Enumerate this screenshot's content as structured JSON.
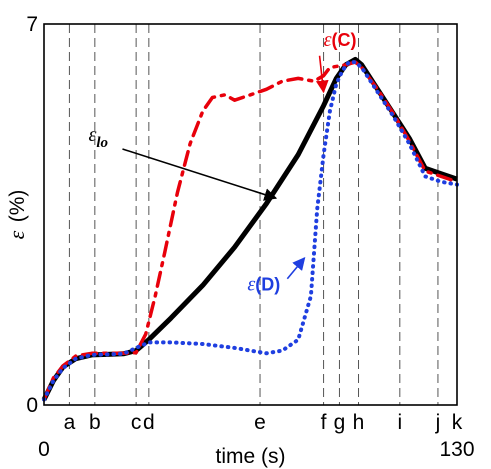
{
  "chart_data": {
    "type": "line",
    "title": "",
    "xlabel": "time (s)",
    "ylabel_symbol": "ε",
    "ylabel_unit": "(%)",
    "xlim": [
      0,
      130
    ],
    "ylim": [
      0,
      7
    ],
    "x_tick_labels": [
      {
        "label": "0",
        "x": 0
      },
      {
        "label": "130",
        "x": 130
      }
    ],
    "y_tick_labels": [
      {
        "label": "0",
        "y": 0
      },
      {
        "label": "7",
        "y": 7
      }
    ],
    "event_markers": [
      {
        "label": "a",
        "x": 8
      },
      {
        "label": "b",
        "x": 16
      },
      {
        "label": "c",
        "x": 29
      },
      {
        "label": "d",
        "x": 33
      },
      {
        "label": "e",
        "x": 68
      },
      {
        "label": "f",
        "x": 88
      },
      {
        "label": "g",
        "x": 93
      },
      {
        "label": "h",
        "x": 99
      },
      {
        "label": "i",
        "x": 112
      },
      {
        "label": "j",
        "x": 124
      },
      {
        "label": "k",
        "x": 130
      }
    ],
    "series": [
      {
        "name": "ε_lo",
        "color": "#000000",
        "style": "solid",
        "x": [
          0,
          3,
          6,
          10,
          15,
          20,
          25,
          29,
          33,
          40,
          50,
          60,
          70,
          80,
          88,
          92,
          95,
          98,
          100,
          105,
          110,
          115,
          120,
          125,
          130
        ],
        "y": [
          0.1,
          0.45,
          0.7,
          0.85,
          0.92,
          0.93,
          0.94,
          1.0,
          1.2,
          1.6,
          2.2,
          2.9,
          3.7,
          4.6,
          5.5,
          6.0,
          6.25,
          6.35,
          6.25,
          5.8,
          5.35,
          4.9,
          4.35,
          4.25,
          4.15
        ]
      },
      {
        "name": "ε(C)",
        "color": "#e8000b",
        "style": "dashdot",
        "x": [
          0,
          3,
          6,
          10,
          15,
          20,
          25,
          29,
          32,
          35,
          38,
          42,
          46,
          50,
          53,
          57,
          60,
          65,
          70,
          75,
          80,
          85,
          88,
          90,
          95,
          98,
          100,
          105,
          110,
          115,
          120,
          125,
          130
        ],
        "y": [
          0.1,
          0.5,
          0.72,
          0.9,
          0.95,
          0.95,
          0.95,
          0.96,
          1.3,
          2.0,
          2.8,
          3.9,
          4.8,
          5.4,
          5.65,
          5.7,
          5.6,
          5.7,
          5.8,
          5.95,
          6.0,
          5.95,
          6.05,
          6.2,
          6.25,
          6.3,
          6.2,
          5.8,
          5.35,
          4.85,
          4.3,
          4.2,
          4.1
        ]
      },
      {
        "name": "ε(D)",
        "color": "#1f3fe0",
        "style": "dotted",
        "x": [
          0,
          3,
          6,
          10,
          15,
          20,
          25,
          29,
          33,
          40,
          50,
          60,
          70,
          75,
          80,
          84,
          86,
          88,
          90,
          92,
          94,
          96,
          98,
          100,
          105,
          110,
          115,
          120,
          125,
          130
        ],
        "y": [
          0.1,
          0.45,
          0.68,
          0.85,
          0.92,
          0.93,
          0.94,
          1.05,
          1.15,
          1.15,
          1.12,
          1.05,
          0.95,
          1.0,
          1.2,
          2.0,
          3.6,
          4.6,
          5.4,
          5.9,
          6.15,
          6.3,
          6.3,
          6.2,
          5.75,
          5.3,
          4.8,
          4.2,
          4.1,
          4.05
        ]
      }
    ],
    "annotations": [
      {
        "symbol": "ε",
        "subscript": "lo",
        "text": "",
        "color": "#000000",
        "x": 14,
        "y": 4.85,
        "target_x": 73,
        "target_y": 3.8
      },
      {
        "symbol": "ε",
        "subscript": "",
        "text": "(C)",
        "color": "#e8000b",
        "x": 88,
        "y": 6.6,
        "target_x": 88,
        "target_y": 5.75
      },
      {
        "symbol": "ε",
        "subscript": "",
        "text": "(D)",
        "color": "#1f3fe0",
        "x": 64,
        "y": 2.1,
        "target_x": 82,
        "target_y": 2.7
      }
    ]
  }
}
